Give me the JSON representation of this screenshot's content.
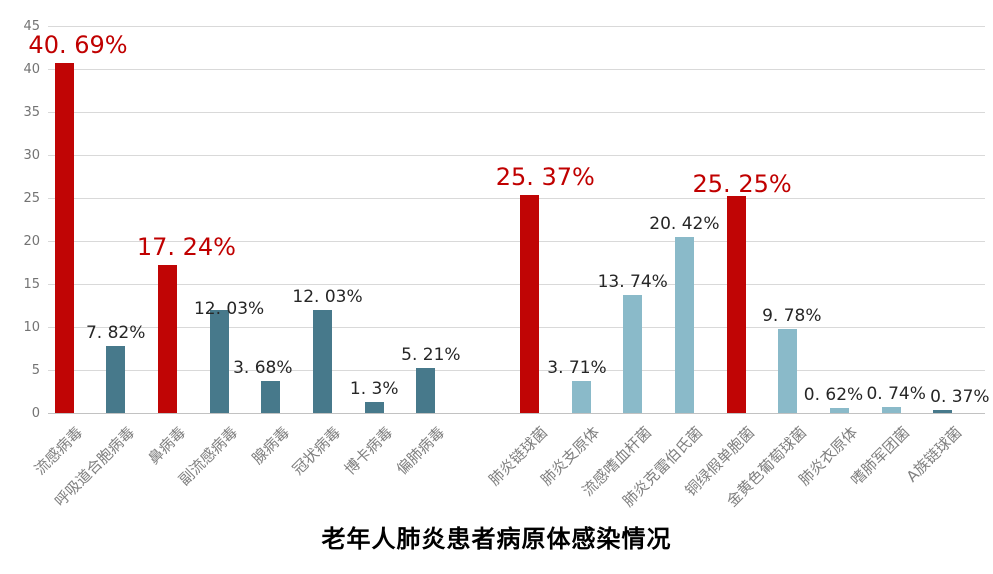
{
  "chart_data": {
    "type": "bar",
    "title": "老年人肺炎患者病原体感染情况",
    "xlabel": "",
    "ylabel": "",
    "ylim": [
      0,
      45
    ],
    "ytick_interval": 5,
    "yticks": [
      0,
      5,
      10,
      15,
      20,
      25,
      30,
      35,
      40,
      45
    ],
    "grid": true,
    "legend_position": "none",
    "group_gap_after_index": 7,
    "palette": {
      "highlight_red": "#c00505",
      "virus_teal": "#47798b",
      "bacteria_blue": "#8abac9"
    },
    "axis_colors": {
      "tick_label": "#737373",
      "category_label": "#7f7f7f",
      "gridline": "#d9d9d9",
      "baseline": "#c2c2c2"
    },
    "value_label_colors": {
      "highlight": "#c00000",
      "normal": "#262626"
    },
    "bars": [
      {
        "category": "流感病毒",
        "value": 40.69,
        "label": "40. 69%",
        "color": "highlight_red",
        "emphasis": true,
        "label_dx": 14,
        "label_dy": 0
      },
      {
        "category": "呼吸道合胞病毒",
        "value": 7.82,
        "label": "7. 82%",
        "color": "virus_teal",
        "emphasis": false,
        "label_dx": 0,
        "label_dy": 0
      },
      {
        "category": "鼻病毒",
        "value": 17.24,
        "label": "17. 24%",
        "color": "highlight_red",
        "emphasis": true,
        "label_dx": 19,
        "label_dy": 0
      },
      {
        "category": "副流感病毒",
        "value": 12.03,
        "label": "12. 03%",
        "color": "virus_teal",
        "emphasis": false,
        "label_dx": 10,
        "label_dy": 12
      },
      {
        "category": "腺病毒",
        "value": 3.68,
        "label": "3. 68%",
        "color": "virus_teal",
        "emphasis": false,
        "label_dx": -8,
        "label_dy": 0
      },
      {
        "category": "冠状病毒",
        "value": 12.03,
        "label": "12. 03%",
        "color": "virus_teal",
        "emphasis": false,
        "label_dx": 5,
        "label_dy": 0
      },
      {
        "category": "博卡病毒",
        "value": 1.3,
        "label": "1. 3%",
        "color": "virus_teal",
        "emphasis": false,
        "label_dx": 0,
        "label_dy": 0
      },
      {
        "category": "偏肺病毒",
        "value": 5.21,
        "label": "5. 21%",
        "color": "virus_teal",
        "emphasis": false,
        "label_dx": 5,
        "label_dy": 0
      },
      {
        "category": "肺炎链球菌",
        "value": 25.37,
        "label": "25. 37%",
        "color": "highlight_red",
        "emphasis": true,
        "label_dx": 16,
        "label_dy": 0
      },
      {
        "category": "肺炎支原体",
        "value": 3.71,
        "label": "3. 71%",
        "color": "bacteria_blue",
        "emphasis": false,
        "label_dx": -4,
        "label_dy": 0
      },
      {
        "category": "流感嗜血杆菌",
        "value": 13.74,
        "label": "13. 74%",
        "color": "bacteria_blue",
        "emphasis": false,
        "label_dx": 0,
        "label_dy": 0
      },
      {
        "category": "肺炎克雷伯氏菌",
        "value": 20.42,
        "label": "20. 42%",
        "color": "bacteria_blue",
        "emphasis": false,
        "label_dx": 0,
        "label_dy": 0
      },
      {
        "category": "铜绿假单胞菌",
        "value": 25.25,
        "label": "25. 25%",
        "color": "highlight_red",
        "emphasis": true,
        "label_dx": 6,
        "label_dy": 6
      },
      {
        "category": "金黄色葡萄球菌",
        "value": 9.78,
        "label": "9. 78%",
        "color": "bacteria_blue",
        "emphasis": false,
        "label_dx": 4,
        "label_dy": 0
      },
      {
        "category": "肺炎衣原体",
        "value": 0.62,
        "label": "0. 62%",
        "color": "bacteria_blue",
        "emphasis": false,
        "label_dx": -6,
        "label_dy": 0
      },
      {
        "category": "嗜肺军团菌",
        "value": 0.74,
        "label": "0. 74%",
        "color": "bacteria_blue",
        "emphasis": false,
        "label_dx": 5,
        "label_dy": 0
      },
      {
        "category": "A族链球菌",
        "value": 0.37,
        "label": "0. 37%",
        "color": "virus_teal",
        "emphasis": false,
        "label_dx": 17,
        "label_dy": 0
      }
    ]
  }
}
